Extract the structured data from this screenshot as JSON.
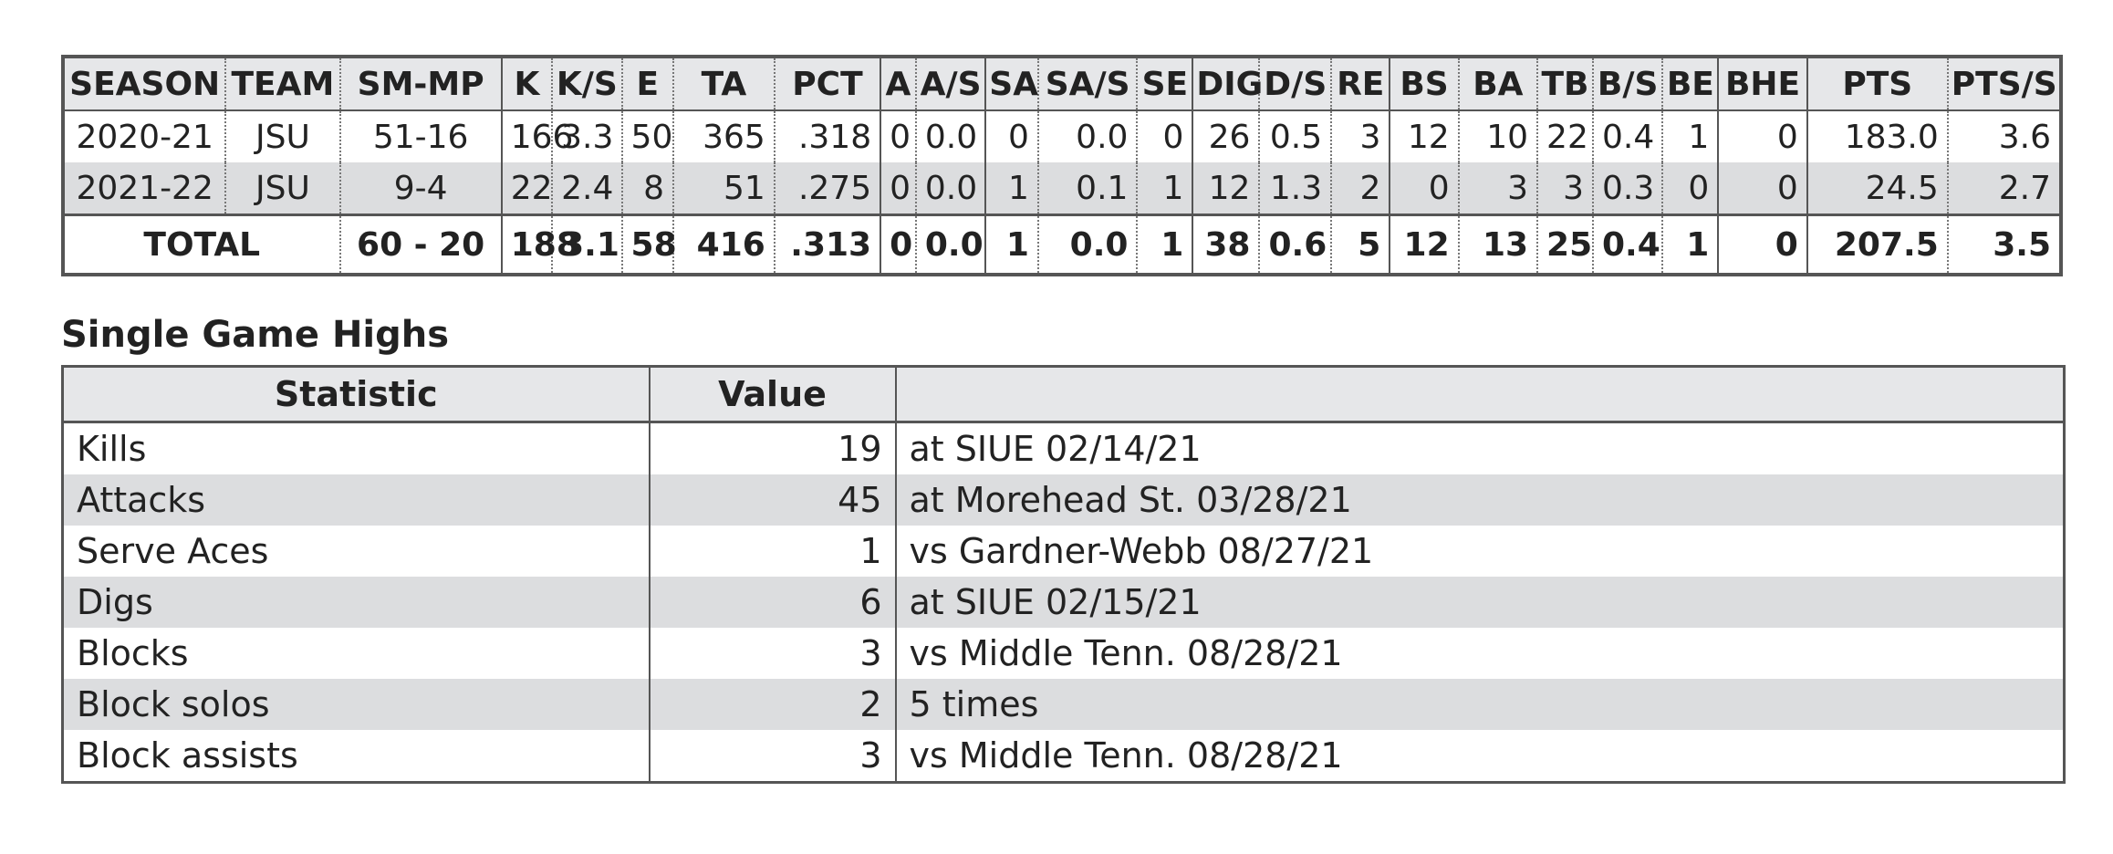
{
  "career": {
    "headers": [
      "SEASON",
      "TEAM",
      "SM-MP",
      "K",
      "K/S",
      "E",
      "TA",
      "PCT",
      "A",
      "A/S",
      "SA",
      "SA/S",
      "SE",
      "DIG",
      "D/S",
      "RE",
      "BS",
      "BA",
      "TB",
      "B/S",
      "BE",
      "BHE",
      "PTS",
      "PTS/S"
    ],
    "rows": [
      [
        "2020-21",
        "JSU",
        "51-16",
        "166",
        "3.3",
        "50",
        "365",
        ".318",
        "0",
        "0.0",
        "0",
        "0.0",
        "0",
        "26",
        "0.5",
        "3",
        "12",
        "10",
        "22",
        "0.4",
        "1",
        "0",
        "183.0",
        "3.6"
      ],
      [
        "2021-22",
        "JSU",
        "9-4",
        "22",
        "2.4",
        "8",
        "51",
        ".275",
        "0",
        "0.0",
        "1",
        "0.1",
        "1",
        "12",
        "1.3",
        "2",
        "0",
        "3",
        "3",
        "0.3",
        "0",
        "0",
        "24.5",
        "2.7"
      ]
    ],
    "total": {
      "label": "TOTAL",
      "values": [
        "60 - 20",
        "188",
        "3.1",
        "58",
        "416",
        ".313",
        "0",
        "0.0",
        "1",
        "0.0",
        "1",
        "38",
        "0.6",
        "5",
        "12",
        "13",
        "25",
        "0.4",
        "1",
        "0",
        "207.5",
        "3.5"
      ]
    }
  },
  "highs": {
    "title": "Single Game Highs",
    "headers": [
      "Statistic",
      "Value",
      ""
    ],
    "rows": [
      [
        "Kills",
        "19",
        "at SIUE 02/14/21"
      ],
      [
        "Attacks",
        "45",
        "at Morehead St. 03/28/21"
      ],
      [
        "Serve Aces",
        "1",
        "vs Gardner-Webb 08/27/21"
      ],
      [
        "Digs",
        "6",
        "at SIUE 02/15/21"
      ],
      [
        "Blocks",
        "3",
        "vs Middle Tenn. 08/28/21"
      ],
      [
        "Block solos",
        "2",
        "5 times"
      ],
      [
        "Block assists",
        "3",
        "vs Middle Tenn. 08/28/21"
      ]
    ]
  }
}
